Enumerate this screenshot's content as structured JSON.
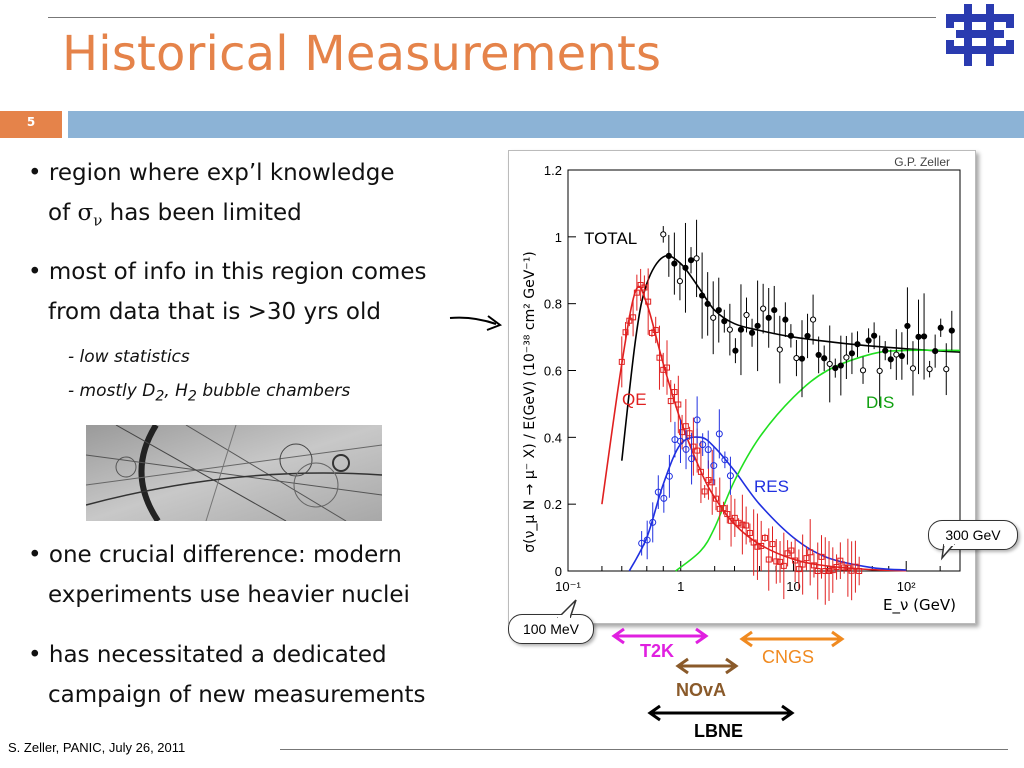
{
  "slide": {
    "title": "Historical Measurements",
    "number": "5",
    "footer": "S. Zeller, PANIC, July 26, 2011"
  },
  "bullets": [
    {
      "line1": "• region where exp’l knowledge",
      "line2_pre": "of ",
      "sigma": "σ",
      "nu": "ν",
      "line2_post": " has been limited"
    },
    {
      "line1": "• most of info in this region comes",
      "line2": "from data that is >30 yrs old"
    },
    {
      "sub1": "- low statistics",
      "sub2_pre": "- mostly D",
      "sub2_d": "2",
      "sub2_mid": ", H",
      "sub2_h": "2",
      "sub2_post": " bubble chambers"
    },
    {
      "line1": "• one crucial difference: modern",
      "line2": "experiments use heavier nuclei"
    },
    {
      "line1": "• has necessitated a dedicated",
      "line2": "campaign of new measurements"
    }
  ],
  "callouts": {
    "high": "300 GeV",
    "low": "100 MeV"
  },
  "experiments": [
    {
      "name": "T2K",
      "color": "#e020e0"
    },
    {
      "name": "CNGS",
      "color": "#f08a20"
    },
    {
      "name": "NOvA",
      "color": "#8a5a2a"
    },
    {
      "name": "LBNE",
      "color": "#000000"
    }
  ],
  "chart_data": {
    "type": "line",
    "author": "G.P. Zeller",
    "ylabel": "σ(ν_μ N → μ⁻ X) / E(GeV)   (10⁻³⁸ cm² GeV⁻¹)",
    "xlabel": "E_ν (GeV)",
    "xscale": "log",
    "xlim": [
      0.1,
      300
    ],
    "ylim": [
      0,
      1.2
    ],
    "x_ticks": [
      "10⁻¹",
      "1",
      "10",
      "10²"
    ],
    "y_ticks": [
      "0",
      "0.2",
      "0.4",
      "0.6",
      "0.8",
      "1",
      "1.2"
    ],
    "series": [
      {
        "name": "TOTAL",
        "color": "#000000",
        "x": [
          0.3,
          0.4,
          0.5,
          0.7,
          1.0,
          1.5,
          2,
          3,
          5,
          10,
          30,
          100,
          300
        ],
        "y": [
          0.33,
          0.7,
          0.86,
          0.94,
          0.92,
          0.84,
          0.78,
          0.74,
          0.72,
          0.7,
          0.68,
          0.665,
          0.655
        ]
      },
      {
        "name": "QE",
        "color": "#e02020",
        "x": [
          0.2,
          0.3,
          0.4,
          0.5,
          0.7,
          1.0,
          1.5,
          2,
          3,
          5,
          10,
          20,
          50,
          100
        ],
        "y": [
          0.2,
          0.62,
          0.84,
          0.8,
          0.62,
          0.45,
          0.3,
          0.22,
          0.14,
          0.08,
          0.035,
          0.015,
          0.004,
          0.001
        ]
      },
      {
        "name": "RES",
        "color": "#2030e0",
        "x": [
          0.35,
          0.5,
          0.7,
          1.0,
          1.5,
          2,
          3,
          5,
          10,
          20,
          50,
          100
        ],
        "y": [
          0.0,
          0.1,
          0.26,
          0.38,
          0.4,
          0.37,
          0.3,
          0.2,
          0.1,
          0.04,
          0.01,
          0.003
        ]
      },
      {
        "name": "DIS",
        "color": "#20e020",
        "x": [
          0.9,
          1.5,
          2,
          3,
          5,
          10,
          20,
          50,
          100,
          300
        ],
        "y": [
          0.0,
          0.06,
          0.13,
          0.27,
          0.4,
          0.52,
          0.6,
          0.65,
          0.66,
          0.66
        ]
      }
    ],
    "curve_labels": {
      "total": "TOTAL",
      "qe": "QE",
      "res": "RES",
      "dis": "DIS"
    }
  }
}
